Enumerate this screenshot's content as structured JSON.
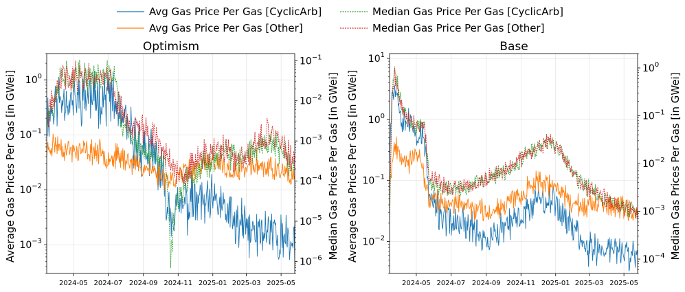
{
  "legend": [
    {
      "label": "Avg Gas Price Per Gas [CyclicArb]",
      "color": "#1f77b4",
      "dashed": false
    },
    {
      "label": "Avg Gas Price Per Gas [Other]",
      "color": "#ff7f0e",
      "dashed": false
    },
    {
      "label": "Median Gas Price Per Gas [CyclicArb]",
      "color": "#2ca02c",
      "dashed": true
    },
    {
      "label": "Median Gas Price Per Gas [Other]",
      "color": "#d62728",
      "dashed": true
    }
  ],
  "chart_data": [
    {
      "type": "line",
      "title": "Optimism",
      "ylabel": "Average Gas Prices Per Gas [in GWei]",
      "y2label": "Median Gas Prices Per Gas [in GWei]",
      "x_ticks": [
        "2024-05",
        "2024-07",
        "2024-09",
        "2024-11",
        "2025-01",
        "2025-03",
        "2025-05"
      ],
      "xlim": [
        "2024-03-15",
        "2025-05-25"
      ],
      "yscale": "log",
      "ylim": [
        0.0003,
        3
      ],
      "y_ticks": [
        0.001,
        0.01,
        0.1,
        1
      ],
      "y_tick_labels": [
        {
          "base": "10",
          "exp": "−3"
        },
        {
          "base": "10",
          "exp": "−2"
        },
        {
          "base": "10",
          "exp": "−1"
        },
        {
          "base": "10",
          "exp": "0"
        }
      ],
      "y2scale": "log",
      "y2lim": [
        5e-07,
        0.15
      ],
      "y2_ticks": [
        1e-06,
        1e-05,
        0.0001,
        0.001,
        0.01,
        0.1
      ],
      "y2_tick_labels": [
        {
          "base": "10",
          "exp": "−6"
        },
        {
          "base": "10",
          "exp": "−5"
        },
        {
          "base": "10",
          "exp": "−4"
        },
        {
          "base": "10",
          "exp": "−3"
        },
        {
          "base": "10",
          "exp": "−2"
        },
        {
          "base": "10",
          "exp": "−1"
        }
      ],
      "grid": true,
      "series": [
        {
          "name": "Avg Gas Price Per Gas [CyclicArb]",
          "axis": "left",
          "color": "#1f77b4",
          "dashed": false,
          "t": [
            0,
            0.03,
            0.06,
            0.1,
            0.15,
            0.2,
            0.25,
            0.3,
            0.35,
            0.4,
            0.45,
            0.5,
            0.55,
            0.6,
            0.65,
            0.7,
            0.75,
            0.8,
            0.85,
            0.9,
            0.95,
            1
          ],
          "values": [
            0.2,
            0.35,
            0.5,
            0.4,
            0.55,
            0.45,
            0.55,
            0.2,
            0.08,
            0.05,
            0.03,
            0.004,
            0.005,
            0.006,
            0.005,
            0.006,
            0.0025,
            0.002,
            0.0015,
            0.002,
            0.0012,
            0.001
          ],
          "jitter": 1.2,
          "seed": 11
        },
        {
          "name": "Avg Gas Price Per Gas [Other]",
          "axis": "left",
          "color": "#ff7f0e",
          "dashed": false,
          "t": [
            0,
            0.03,
            0.06,
            0.1,
            0.15,
            0.2,
            0.25,
            0.3,
            0.35,
            0.4,
            0.45,
            0.5,
            0.55,
            0.6,
            0.65,
            0.7,
            0.75,
            0.8,
            0.85,
            0.9,
            0.95,
            1
          ],
          "values": [
            0.05,
            0.07,
            0.06,
            0.05,
            0.05,
            0.05,
            0.04,
            0.04,
            0.03,
            0.025,
            0.02,
            0.015,
            0.02,
            0.025,
            0.03,
            0.03,
            0.02,
            0.025,
            0.03,
            0.025,
            0.02,
            0.015
          ],
          "jitter": 0.55,
          "seed": 23
        },
        {
          "name": "Median Gas Price Per Gas [CyclicArb]",
          "axis": "right",
          "color": "#2ca02c",
          "dashed": true,
          "t": [
            0,
            0.03,
            0.06,
            0.09,
            0.12,
            0.2,
            0.28,
            0.3,
            0.35,
            0.4,
            0.45,
            0.48,
            0.5,
            0.52,
            0.56,
            0.6,
            0.65,
            0.7,
            0.75,
            0.8,
            0.85,
            0.9,
            0.95,
            1
          ],
          "values": [
            0.005,
            0.008,
            0.05,
            0.04,
            0.04,
            0.04,
            0.04,
            0.003,
            0.001,
            0.0005,
            0.0003,
            0.0003,
            1e-06,
            3e-05,
            0.0001,
            0.0002,
            0.0003,
            0.0005,
            0.0004,
            0.0003,
            0.0008,
            0.001,
            0.0005,
            0.0002
          ],
          "jitter": 0.9,
          "seed": 37
        },
        {
          "name": "Median Gas Price Per Gas [Other]",
          "axis": "right",
          "color": "#d62728",
          "dashed": true,
          "t": [
            0,
            0.03,
            0.06,
            0.1,
            0.15,
            0.2,
            0.25,
            0.3,
            0.35,
            0.4,
            0.45,
            0.5,
            0.55,
            0.6,
            0.65,
            0.7,
            0.75,
            0.8,
            0.85,
            0.9,
            0.95,
            1
          ],
          "values": [
            0.004,
            0.01,
            0.04,
            0.04,
            0.04,
            0.04,
            0.04,
            0.005,
            0.002,
            0.002,
            0.001,
            0.0003,
            0.0001,
            0.0003,
            0.0005,
            0.0006,
            0.0004,
            0.0003,
            0.0008,
            0.002,
            0.0008,
            0.0002
          ],
          "jitter": 0.9,
          "seed": 41
        }
      ]
    },
    {
      "type": "line",
      "title": "Base",
      "ylabel": "Average Gas Prices Per Gas [in GWei]",
      "y2label": "Median Gas Prices Per Gas [in GWei]",
      "x_ticks": [
        "2024-05",
        "2024-07",
        "2024-09",
        "2024-11",
        "2025-01",
        "2025-03",
        "2025-05"
      ],
      "xlim": [
        "2024-03-15",
        "2025-05-25"
      ],
      "yscale": "log",
      "ylim": [
        0.003,
        12
      ],
      "y_ticks": [
        0.01,
        0.1,
        1,
        10
      ],
      "y_tick_labels": [
        {
          "base": "10",
          "exp": "−2"
        },
        {
          "base": "10",
          "exp": "−1"
        },
        {
          "base": "10",
          "exp": "0"
        },
        {
          "base": "10",
          "exp": "1"
        }
      ],
      "y2scale": "log",
      "y2lim": [
        5e-05,
        2
      ],
      "y2_ticks": [
        0.0001,
        0.001,
        0.01,
        0.1,
        1
      ],
      "y2_tick_labels": [
        {
          "base": "10",
          "exp": "−4"
        },
        {
          "base": "10",
          "exp": "−3"
        },
        {
          "base": "10",
          "exp": "−2"
        },
        {
          "base": "10",
          "exp": "−1"
        },
        {
          "base": "10",
          "exp": "0"
        }
      ],
      "grid": true,
      "series": [
        {
          "name": "Avg Gas Price Per Gas [CyclicArb]",
          "axis": "left",
          "color": "#1f77b4",
          "dashed": false,
          "t": [
            0,
            0.01,
            0.02,
            0.03,
            0.05,
            0.08,
            0.11,
            0.14,
            0.16,
            0.2,
            0.25,
            0.3,
            0.35,
            0.4,
            0.45,
            0.5,
            0.55,
            0.6,
            0.65,
            0.7,
            0.75,
            0.8,
            0.85,
            0.9,
            0.95,
            1
          ],
          "values": [
            0.3,
            3,
            4,
            2.5,
            1.2,
            0.8,
            0.6,
            0.5,
            0.05,
            0.03,
            0.02,
            0.02,
            0.015,
            0.01,
            0.015,
            0.02,
            0.03,
            0.06,
            0.05,
            0.03,
            0.015,
            0.008,
            0.007,
            0.008,
            0.006,
            0.006
          ],
          "jitter": 0.7,
          "seed": 53
        },
        {
          "name": "Avg Gas Price Per Gas [Other]",
          "axis": "left",
          "color": "#ff7f0e",
          "dashed": false,
          "t": [
            0,
            0.02,
            0.04,
            0.08,
            0.12,
            0.16,
            0.2,
            0.25,
            0.3,
            0.35,
            0.4,
            0.45,
            0.5,
            0.55,
            0.6,
            0.65,
            0.7,
            0.75,
            0.8,
            0.85,
            0.9,
            0.95,
            1
          ],
          "values": [
            0.1,
            0.4,
            0.3,
            0.2,
            0.25,
            0.05,
            0.045,
            0.04,
            0.04,
            0.035,
            0.03,
            0.04,
            0.05,
            0.07,
            0.1,
            0.08,
            0.06,
            0.04,
            0.035,
            0.04,
            0.035,
            0.035,
            0.03
          ],
          "jitter": 0.45,
          "seed": 67
        },
        {
          "name": "Median Gas Price Per Gas [CyclicArb]",
          "axis": "right",
          "color": "#2ca02c",
          "dashed": true,
          "t": [
            0,
            0.01,
            0.02,
            0.03,
            0.05,
            0.08,
            0.11,
            0.14,
            0.16,
            0.2,
            0.25,
            0.3,
            0.35,
            0.4,
            0.45,
            0.5,
            0.55,
            0.6,
            0.65,
            0.7,
            0.75,
            0.8,
            0.85,
            0.9,
            0.95,
            1
          ],
          "values": [
            0.0005,
            0.3,
            0.9,
            0.5,
            0.15,
            0.08,
            0.06,
            0.07,
            0.004,
            0.003,
            0.003,
            0.003,
            0.004,
            0.005,
            0.006,
            0.008,
            0.015,
            0.02,
            0.03,
            0.015,
            0.005,
            0.003,
            0.002,
            0.0015,
            0.0012,
            0.001
          ],
          "jitter": 0.45,
          "seed": 71
        },
        {
          "name": "Median Gas Price Per Gas [Other]",
          "axis": "right",
          "color": "#d62728",
          "dashed": true,
          "t": [
            0,
            0.01,
            0.02,
            0.03,
            0.05,
            0.08,
            0.11,
            0.14,
            0.16,
            0.2,
            0.25,
            0.3,
            0.35,
            0.4,
            0.45,
            0.5,
            0.55,
            0.6,
            0.65,
            0.7,
            0.75,
            0.8,
            0.85,
            0.9,
            0.95,
            1
          ],
          "values": [
            0.001,
            0.25,
            0.8,
            0.45,
            0.15,
            0.08,
            0.06,
            0.07,
            0.005,
            0.004,
            0.003,
            0.003,
            0.004,
            0.005,
            0.007,
            0.009,
            0.016,
            0.022,
            0.03,
            0.015,
            0.005,
            0.003,
            0.002,
            0.0015,
            0.0012,
            0.001
          ],
          "jitter": 0.45,
          "seed": 79
        }
      ]
    }
  ]
}
